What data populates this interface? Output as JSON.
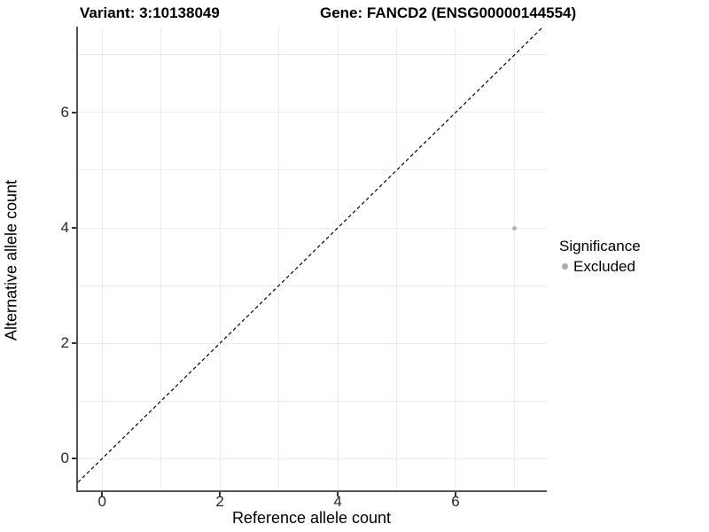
{
  "chart_data": {
    "type": "scatter",
    "titles": {
      "left": "Variant: 3:10138049",
      "right": "Gene: FANCD2 (ENSG00000144554)"
    },
    "xlabel": "Reference allele count",
    "ylabel": "Alternative allele count",
    "x_ticks": [
      0,
      2,
      4,
      6
    ],
    "y_ticks": [
      0,
      2,
      4,
      6
    ],
    "x_domain": [
      -0.41,
      7.55
    ],
    "y_domain": [
      -0.55,
      7.49
    ],
    "x_gridlines": [
      0,
      1,
      2,
      3,
      4,
      5,
      6,
      7
    ],
    "y_gridlines": [
      0,
      1,
      2,
      3,
      4,
      5,
      6,
      7
    ],
    "grid_color": "#ececec",
    "axis_color": "#555555",
    "series": [
      {
        "name": "Excluded",
        "color": "#b3b3b3",
        "marker": "circle",
        "points": [
          [
            7,
            4
          ]
        ]
      }
    ],
    "reference_line": {
      "type": "identity",
      "slope": 1,
      "intercept": 0,
      "style": "dashed",
      "color": "#000000"
    },
    "legend": {
      "position": "right",
      "title": "Significance",
      "items": [
        {
          "label": "Excluded",
          "color": "#aaaaaa"
        }
      ]
    }
  }
}
